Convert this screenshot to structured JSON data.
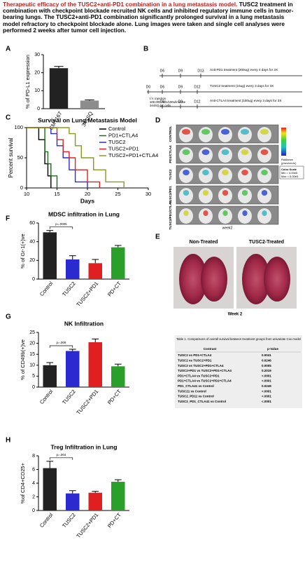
{
  "caption": {
    "headline": "Therapeutic efficacy of the TUSC2+anti-PD1 combination in a lung metastasis model.",
    "body": "TUSC2 treatment in combination with checkpoint blockade recruited NK cells and inhibited regulatory immune cells in tumor-bearing lungs. The TUSC2+anti-PD1 combination significantly prolonged survival in a lung metastasis model refractory to checkpoint blockade alone. Lung images were taken and single cell analyses were performed 2 weeks after tumor cell injection."
  },
  "chart_data": [
    {
      "type": "bar",
      "panel": "A",
      "ylabel": "% of PD-L1 expression",
      "categories": [
        "CMT167",
        "344SQ"
      ],
      "values": [
        22.5,
        4.5
      ],
      "errors": [
        1,
        0.4
      ],
      "colors": [
        "#222222",
        "#8c8c8c"
      ],
      "ylim": [
        0,
        30
      ],
      "yticks": [
        0,
        10,
        20,
        30
      ]
    },
    {
      "type": "survival",
      "panel": "C",
      "title": "Survival on Lung Metastasis Model",
      "xlabel": "Days",
      "ylabel": "Percent survival",
      "xlim": [
        10,
        30
      ],
      "xticks": [
        10,
        15,
        20,
        25,
        30
      ],
      "ylim": [
        0,
        100
      ],
      "yticks": [
        0,
        50,
        100
      ],
      "series": [
        {
          "name": "Control",
          "color": "#000000",
          "x": [
            10,
            12,
            13,
            13.5,
            14
          ],
          "values": [
            100,
            80,
            40,
            20,
            0
          ]
        },
        {
          "name": "PD1+CTLA4",
          "color": "#1a6b1a",
          "x": [
            10,
            13,
            13.5,
            14,
            15
          ],
          "values": [
            100,
            60,
            40,
            20,
            0
          ]
        },
        {
          "name": "TUSC2",
          "color": "#2a2ad0",
          "x": [
            10,
            14,
            15,
            16,
            17,
            18,
            20
          ],
          "values": [
            100,
            90,
            70,
            50,
            30,
            10,
            0
          ]
        },
        {
          "name": "TUSC2+PD1",
          "color": "#e02020",
          "x": [
            10,
            15,
            16,
            17,
            18,
            20,
            22
          ],
          "values": [
            100,
            80,
            60,
            50,
            30,
            10,
            0
          ]
        },
        {
          "name": "TUSC2+PD1+CTLA4",
          "color": "#8a9a1a",
          "x": [
            10,
            17,
            18,
            19,
            21,
            23,
            26
          ],
          "values": [
            100,
            90,
            70,
            50,
            30,
            10,
            0
          ]
        }
      ]
    },
    {
      "type": "bar",
      "panel": "F",
      "title": "MDSC infiltration in Lung",
      "ylabel": "% of Gr-1(+)ve",
      "categories": [
        "Control",
        "TUSC2",
        "TUSC2+PD1",
        "PD+CT"
      ],
      "values": [
        50,
        21,
        17,
        34
      ],
      "errors": [
        2,
        4,
        4,
        2
      ],
      "colors": [
        "#222222",
        "#2a2ad0",
        "#e02020",
        "#2aa02a"
      ],
      "ylim": [
        0,
        60
      ],
      "yticks": [
        0,
        20,
        40,
        60
      ],
      "annotation": "p=.0005"
    },
    {
      "type": "bar",
      "panel": "G",
      "title": "NK Infiltration",
      "ylabel": "% of CD49b(+)ve",
      "categories": [
        "Control",
        "TUSC2",
        "TUSC2+PD1",
        "PD+CT"
      ],
      "values": [
        10,
        16.5,
        20.5,
        9.5
      ],
      "errors": [
        1.2,
        0.8,
        1.5,
        1
      ],
      "colors": [
        "#222222",
        "#2a2ad0",
        "#e02020",
        "#2aa02a"
      ],
      "ylim": [
        0,
        25
      ],
      "yticks": [
        0,
        5,
        10,
        15,
        20,
        25
      ],
      "annotation": "p=.009"
    },
    {
      "type": "bar",
      "panel": "H",
      "title": "Treg Infiltration in Lung",
      "ylabel": "%of CD4+CD25+",
      "categories": [
        "Control",
        "TUSC2",
        "TUSC2+PD1",
        "PD+CT"
      ],
      "values": [
        6.2,
        2.5,
        2.6,
        4.2
      ],
      "errors": [
        1,
        0.4,
        0.2,
        0.3
      ],
      "colors": [
        "#222222",
        "#2a2ad0",
        "#e02020",
        "#2aa02a"
      ],
      "ylim": [
        0,
        8
      ],
      "yticks": [
        0,
        2,
        4,
        6,
        8
      ],
      "annotation": "p=.004"
    }
  ],
  "timeline": {
    "panel": "B",
    "rows": [
      {
        "days": [
          "D6",
          "D9",
          "D13"
        ],
        "label": "Anti-PD1 treatment (200ug) every 4 days for 3X"
      },
      {
        "days": [
          "D0",
          "D6",
          "D9",
          "D12"
        ],
        "label": "TUSC2 treatment (15ug) every 3 days for 3X"
      },
      {
        "days": [
          "D6",
          "D9",
          "D12"
        ],
        "label": "Anti-CTLA4 treatment (100ug) every 3 days for 3X"
      }
    ],
    "injection": [
      "I.V. injection",
      "100,000 cells/100ul/mouse",
      "344SQ-luc cells"
    ]
  },
  "imaging": {
    "panel": "D",
    "rows": [
      "CONTROL",
      "PD1/CTLA4",
      "TUSC2",
      "TUSC2/PD1",
      "TUSC2/PD1/CTLA4"
    ],
    "footer": "week2",
    "scale_title": "Radiance",
    "scale_unit": "(p/sec/cm²/sr)",
    "scale_lines": [
      "Color Scale",
      "Min = 4.00e5",
      "Max = 6.00e5"
    ]
  },
  "lungs": {
    "panel": "E",
    "labels": [
      "Non-Treated",
      "TUSC2-Treated"
    ],
    "footer": "Week 2"
  },
  "table": {
    "title": "Table 1. Comparisons of overall survival between treatment groups from univariate Cox model",
    "header": [
      "Contrast",
      "p-Value"
    ],
    "rows": [
      [
        "TUSC2 vs PD1+CTLA4",
        "0.0041"
      ],
      [
        "TUSC2 vs TUSC2+PD1",
        "0.0246"
      ],
      [
        "TUSC2 vs TUSC2+PD1+CTLA4",
        "0.0005"
      ],
      [
        "TUSC2+PD1 vs TUSC2+PD1+CTLA4",
        "0.2019"
      ],
      [
        "PD1+CTLA4 vs TUSC2+PD1",
        "<.0001"
      ],
      [
        "PD1+CTLA4 vs TUSC2+PD1+CTLA4",
        "<.0001"
      ],
      [
        "PD1_CTLA41 vs Control",
        "0.0249"
      ],
      [
        "TUSC21 vs Control",
        "<.0001"
      ],
      [
        "TUSC2_PD11 vs Control",
        "<.0001"
      ],
      [
        "TUSC2_PD1_CTLA41 vs Control",
        "<.0001"
      ]
    ]
  }
}
